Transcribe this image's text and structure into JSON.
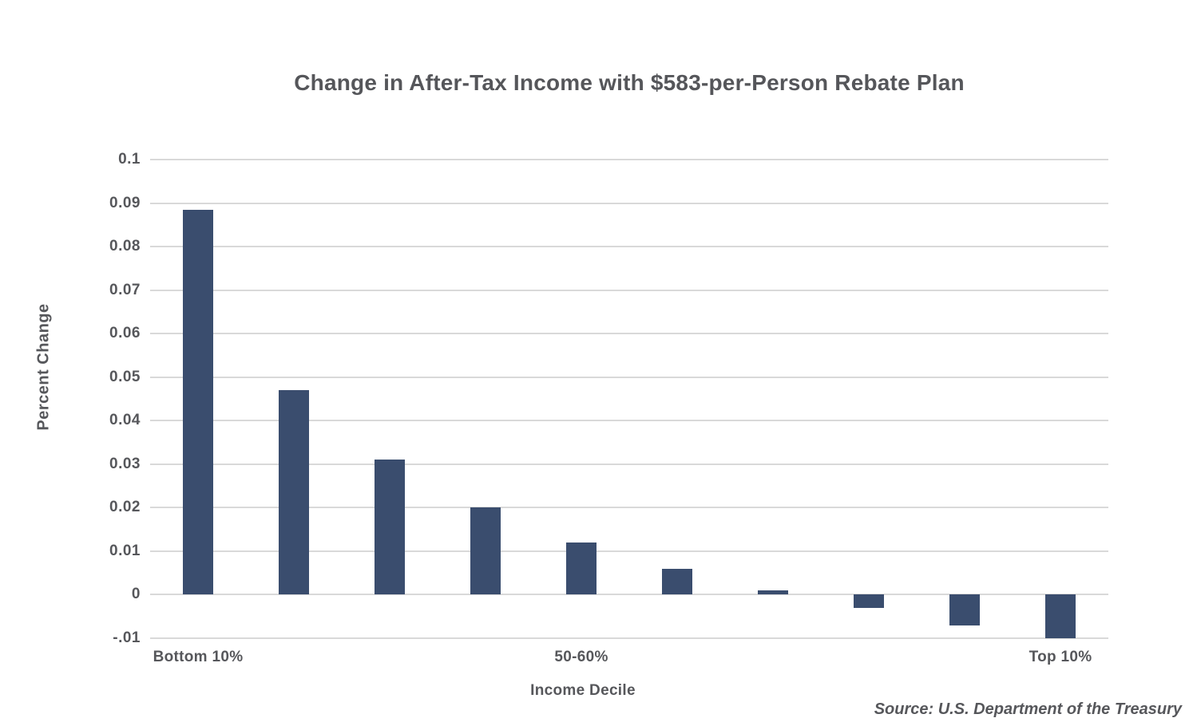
{
  "chart_data": {
    "type": "bar",
    "title": "Change in After-Tax Income with $583-per-Person Rebate Plan",
    "xlabel": "Income Decile",
    "ylabel": "Percent Change",
    "source": "Source: U.S. Department of the Treasury",
    "categories": [
      "Bottom 10%",
      "",
      "",
      "",
      "50-60%",
      "",
      "",
      "",
      "",
      "Top 10%"
    ],
    "values": [
      0.0885,
      0.047,
      0.031,
      0.02,
      0.012,
      0.006,
      0.001,
      -0.003,
      -0.007,
      -0.01
    ],
    "ylim": [
      -0.01,
      0.1
    ],
    "y_ticks": [
      {
        "value": 0.1,
        "label": "0.1"
      },
      {
        "value": 0.09,
        "label": "0.09"
      },
      {
        "value": 0.08,
        "label": "0.08"
      },
      {
        "value": 0.07,
        "label": "0.07"
      },
      {
        "value": 0.06,
        "label": "0.06"
      },
      {
        "value": 0.05,
        "label": "0.05"
      },
      {
        "value": 0.04,
        "label": "0.04"
      },
      {
        "value": 0.03,
        "label": "0.03"
      },
      {
        "value": 0.02,
        "label": "0.02"
      },
      {
        "value": 0.01,
        "label": "0.01"
      },
      {
        "value": 0,
        "label": "0"
      },
      {
        "value": -0.01,
        "label": "-.01"
      }
    ],
    "grid": true,
    "legend": "none",
    "colors": {
      "bar": "#3a4d6e",
      "gridline": "#d9d9d9",
      "text": "#56575b"
    }
  }
}
